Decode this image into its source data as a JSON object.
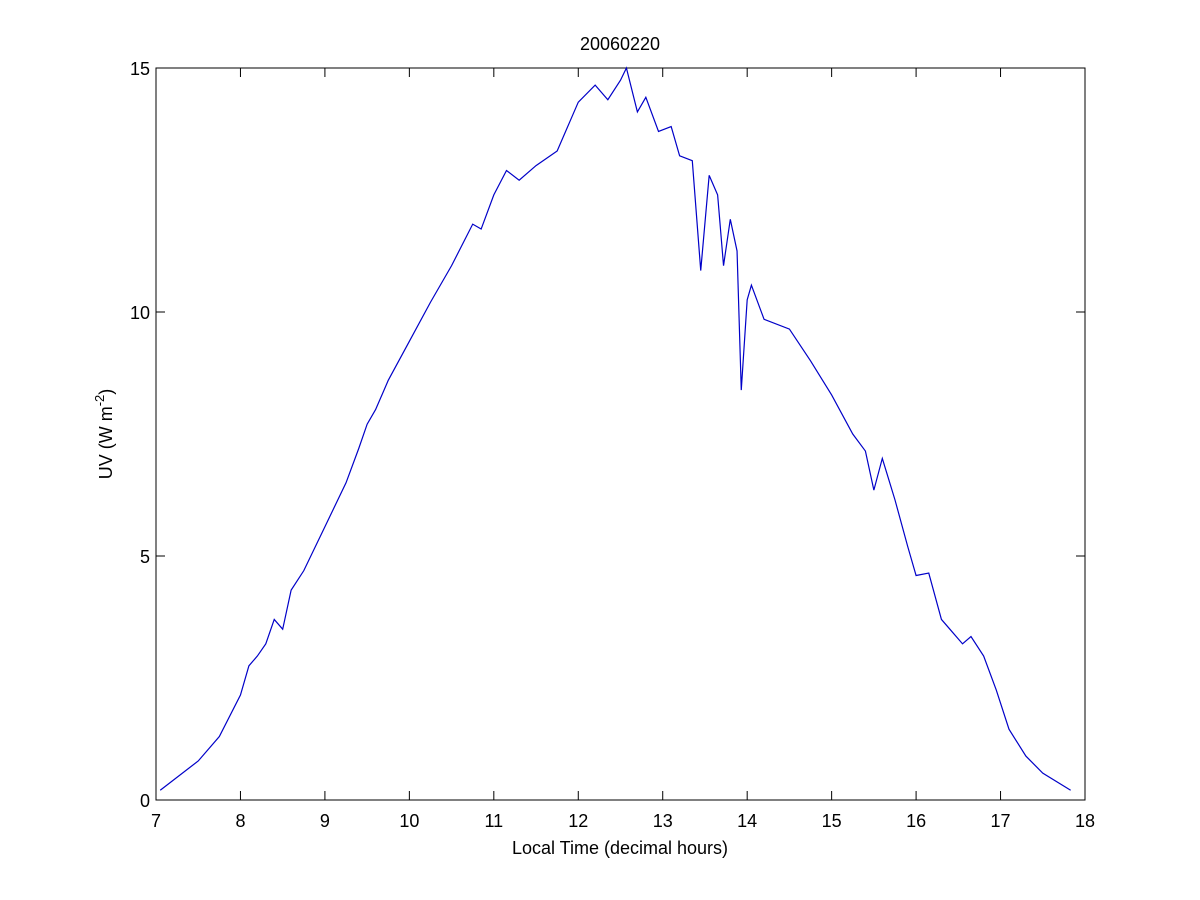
{
  "chart_data": {
    "type": "line",
    "title": "20060220",
    "xlabel": "Local Time (decimal hours)",
    "ylabel_parts": [
      "UV (W m",
      "-2",
      ")"
    ],
    "x": [
      7.05,
      7.5,
      7.75,
      8.0,
      8.1,
      8.2,
      8.3,
      8.4,
      8.5,
      8.6,
      8.75,
      9.0,
      9.25,
      9.4,
      9.5,
      9.6,
      9.75,
      10.0,
      10.25,
      10.5,
      10.75,
      10.85,
      11.0,
      11.15,
      11.3,
      11.5,
      11.75,
      11.9,
      12.0,
      12.2,
      12.35,
      12.5,
      12.57,
      12.7,
      12.8,
      12.95,
      13.1,
      13.2,
      13.35,
      13.45,
      13.55,
      13.65,
      13.72,
      13.8,
      13.88,
      13.93,
      14.0,
      14.05,
      14.2,
      14.5,
      14.75,
      15.0,
      15.25,
      15.4,
      15.5,
      15.6,
      15.75,
      15.9,
      16.0,
      16.15,
      16.3,
      16.4,
      16.55,
      16.65,
      16.8,
      16.95,
      17.1,
      17.3,
      17.5,
      17.83
    ],
    "series": [
      {
        "color": "#0000c8",
        "values": [
          0.2,
          0.8,
          1.3,
          2.15,
          2.75,
          2.95,
          3.2,
          3.7,
          3.5,
          4.3,
          4.7,
          5.6,
          6.5,
          7.2,
          7.7,
          8.0,
          8.6,
          9.4,
          10.2,
          10.95,
          11.8,
          11.7,
          12.4,
          12.9,
          12.7,
          13.0,
          13.3,
          13.9,
          14.3,
          14.65,
          14.35,
          14.75,
          15.0,
          14.1,
          14.4,
          13.7,
          13.8,
          13.2,
          13.1,
          10.85,
          12.8,
          12.4,
          10.95,
          11.9,
          11.25,
          8.4,
          10.25,
          10.55,
          9.85,
          9.65,
          9.0,
          8.3,
          7.5,
          7.15,
          6.35,
          7.0,
          6.15,
          5.2,
          4.6,
          4.65,
          3.7,
          3.5,
          3.2,
          3.35,
          2.95,
          2.25,
          1.45,
          0.9,
          0.55,
          0.2
        ]
      }
    ],
    "xlim": [
      7,
      18
    ],
    "xticks": [
      7,
      8,
      9,
      10,
      11,
      12,
      13,
      14,
      15,
      16,
      17,
      18
    ],
    "ylim": [
      0,
      15
    ],
    "yticks": [
      0,
      5,
      10,
      15
    ],
    "grid": false
  }
}
